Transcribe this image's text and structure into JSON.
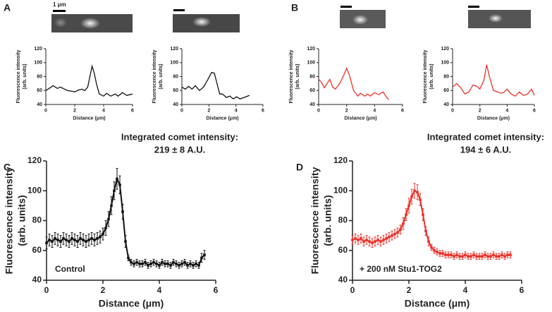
{
  "panels": [
    {
      "label": "A"
    },
    {
      "label": "B"
    },
    {
      "label": "C"
    },
    {
      "label": "D"
    }
  ],
  "scale_bar_label": "1 μm",
  "chart_data": [
    {
      "type": "line",
      "color": "#111111",
      "xlabel": "Distance (μm)",
      "ylabel": [
        "Fluorescence intensity",
        "(arb. units)"
      ],
      "xlim": [
        0,
        6
      ],
      "ylim": [
        40,
        120
      ],
      "xticks": [
        0,
        2,
        4,
        6
      ],
      "yticks": [
        40,
        60,
        80,
        100,
        120
      ],
      "x": [
        0,
        0.3,
        0.5,
        0.8,
        1,
        1.3,
        1.5,
        1.8,
        2,
        2.3,
        2.5,
        2.7,
        2.9,
        3.05,
        3.2,
        3.35,
        3.5,
        3.7,
        4,
        4.2,
        4.5,
        4.8,
        5,
        5.3,
        5.6,
        6
      ],
      "values": [
        60,
        64,
        67,
        63,
        65,
        62,
        60,
        59,
        58,
        61,
        62,
        60,
        65,
        80,
        95,
        85,
        70,
        55,
        52,
        56,
        52,
        55,
        52,
        57,
        53,
        55
      ]
    },
    {
      "type": "line",
      "color": "#111111",
      "xlabel": "Distance (μm)",
      "ylabel": [
        "Fluorescence intensity",
        "(arb. units)"
      ],
      "xlim": [
        0,
        6
      ],
      "ylim": [
        40,
        120
      ],
      "xticks": [
        0,
        2,
        4,
        6
      ],
      "yticks": [
        40,
        60,
        80,
        100,
        120
      ],
      "x": [
        0,
        0.25,
        0.5,
        0.75,
        1,
        1.3,
        1.6,
        1.9,
        2.2,
        2.4,
        2.6,
        2.8,
        3,
        3.3,
        3.55,
        3.8,
        4.05,
        4.3,
        4.6,
        5
      ],
      "values": [
        65,
        62,
        66,
        62,
        67,
        60,
        65,
        75,
        86,
        85,
        70,
        55,
        55,
        50,
        52,
        48,
        51,
        48,
        50,
        53
      ]
    },
    {
      "type": "line",
      "color": "#e8322a",
      "xlabel": "Distance (μm)",
      "ylabel": [
        "Fluorescence intensity",
        "(arb. units)"
      ],
      "xlim": [
        0,
        6
      ],
      "ylim": [
        40,
        120
      ],
      "xticks": [
        0,
        2,
        4,
        6
      ],
      "yticks": [
        40,
        60,
        80,
        100,
        120
      ],
      "x": [
        0,
        0.2,
        0.4,
        0.6,
        0.8,
        1,
        1.2,
        1.5,
        1.8,
        2,
        2.2,
        2.5,
        2.8,
        3,
        3.3,
        3.5,
        3.7,
        4,
        4.3,
        4.6,
        4.8,
        5
      ],
      "values": [
        76,
        72,
        64,
        70,
        76,
        65,
        62,
        70,
        82,
        92,
        82,
        60,
        52,
        56,
        52,
        55,
        52,
        57,
        54,
        58,
        52,
        47
      ]
    },
    {
      "type": "line",
      "color": "#e8322a",
      "xlabel": "Distance (μm)",
      "ylabel": [
        "Fluorescence intensity",
        "(arb. units)"
      ],
      "xlim": [
        0,
        6
      ],
      "ylim": [
        40,
        120
      ],
      "xticks": [
        0,
        2,
        4,
        6
      ],
      "yticks": [
        40,
        60,
        80,
        100,
        120
      ],
      "x": [
        0,
        0.3,
        0.6,
        0.9,
        1.2,
        1.5,
        1.8,
        2,
        2.3,
        2.5,
        2.7,
        3,
        3.3,
        3.6,
        3.8,
        4,
        4.3,
        4.6,
        4.9,
        5.2,
        5.5,
        5.8,
        6
      ],
      "values": [
        65,
        70,
        64,
        55,
        58,
        68,
        66,
        62,
        75,
        97,
        80,
        60,
        58,
        56,
        58,
        62,
        55,
        52,
        58,
        53,
        55,
        62,
        53
      ]
    },
    {
      "type": "errorline",
      "color": "#111111",
      "xlabel": "Distance (μm)",
      "ylabel": [
        "Fluorescence intensity",
        "(arb. units)"
      ],
      "xlim": [
        0,
        6
      ],
      "ylim": [
        40,
        120
      ],
      "xticks": [
        0,
        2,
        4,
        6
      ],
      "yticks": [
        40,
        60,
        80,
        100,
        120
      ],
      "annotation": [
        "Integrated comet intensity:",
        "219 ± 8 A.U."
      ],
      "condition": "Control",
      "x": [
        0,
        0.1,
        0.2,
        0.3,
        0.4,
        0.5,
        0.6,
        0.7,
        0.8,
        0.9,
        1,
        1.1,
        1.2,
        1.3,
        1.4,
        1.5,
        1.6,
        1.7,
        1.8,
        1.9,
        2,
        2.1,
        2.2,
        2.3,
        2.4,
        2.5,
        2.6,
        2.7,
        2.8,
        2.9,
        3,
        3.1,
        3.2,
        3.3,
        3.4,
        3.5,
        3.6,
        3.7,
        3.8,
        3.9,
        4,
        4.1,
        4.2,
        4.3,
        4.4,
        4.5,
        4.6,
        4.7,
        4.8,
        4.9,
        5,
        5.1,
        5.2,
        5.3,
        5.4,
        5.5,
        5.6
      ],
      "values": [
        65,
        67,
        66,
        68,
        67,
        66,
        68,
        67,
        66,
        68,
        67,
        66,
        68,
        67,
        66,
        67,
        68,
        67,
        68,
        69,
        71,
        75,
        81,
        90,
        100,
        108,
        104,
        86,
        66,
        55,
        52,
        51,
        52,
        51,
        51,
        52,
        50,
        51,
        52,
        51,
        50,
        52,
        51,
        51,
        50,
        52,
        51,
        50,
        51,
        52,
        50,
        51,
        50,
        51,
        50,
        55,
        57
      ],
      "errors": [
        4,
        4,
        4,
        4,
        4,
        4,
        4,
        4,
        4,
        4,
        4,
        4,
        4,
        4,
        4,
        4,
        4,
        4,
        4,
        4,
        4,
        5,
        5,
        6,
        6,
        7,
        6,
        5,
        4,
        2,
        2,
        2,
        2,
        2,
        2,
        2,
        2,
        2,
        2,
        2,
        2,
        2,
        2,
        2,
        2,
        2,
        2,
        2,
        2,
        2,
        2,
        2,
        2,
        2,
        2,
        3,
        3
      ]
    },
    {
      "type": "errorline",
      "color": "#e8322a",
      "xlabel": "Distance (μm)",
      "ylabel": [
        "Fluorescence intensity",
        "(arb. units)"
      ],
      "xlim": [
        0,
        6
      ],
      "ylim": [
        40,
        120
      ],
      "xticks": [
        0,
        2,
        4,
        6
      ],
      "yticks": [
        40,
        60,
        80,
        100,
        120
      ],
      "annotation": [
        "Integrated comet intensity:",
        "194 ± 6 A.U."
      ],
      "condition": "+ 200 nM Stu1-TOG2",
      "x": [
        0,
        0.1,
        0.2,
        0.3,
        0.4,
        0.5,
        0.6,
        0.7,
        0.8,
        0.9,
        1,
        1.1,
        1.2,
        1.3,
        1.4,
        1.5,
        1.6,
        1.7,
        1.8,
        1.9,
        2,
        2.1,
        2.2,
        2.3,
        2.4,
        2.5,
        2.6,
        2.7,
        2.8,
        2.9,
        3,
        3.1,
        3.2,
        3.3,
        3.4,
        3.5,
        3.6,
        3.7,
        3.8,
        3.9,
        4,
        4.1,
        4.2,
        4.3,
        4.4,
        4.5,
        4.6,
        4.7,
        4.8,
        4.9,
        5,
        5.1,
        5.2,
        5.3,
        5.4,
        5.5,
        5.6
      ],
      "values": [
        67,
        68,
        67,
        68,
        66,
        67,
        66,
        65,
        66,
        67,
        66,
        67,
        68,
        69,
        70,
        71,
        72,
        74,
        78,
        84,
        90,
        96,
        100,
        99,
        94,
        84,
        73,
        66,
        62,
        60,
        59,
        58,
        58,
        57,
        57,
        57,
        56,
        57,
        56,
        56,
        57,
        56,
        56,
        57,
        56,
        56,
        56,
        57,
        56,
        56,
        57,
        56,
        56,
        57,
        56,
        57,
        57
      ],
      "errors": [
        3,
        3,
        3,
        3,
        3,
        3,
        3,
        3,
        3,
        3,
        3,
        3,
        3,
        3,
        3,
        3,
        3,
        3,
        4,
        4,
        5,
        5,
        5,
        5,
        4,
        4,
        3,
        3,
        2,
        2,
        2,
        2,
        2,
        2,
        2,
        2,
        2,
        2,
        2,
        2,
        2,
        2,
        2,
        2,
        2,
        2,
        2,
        2,
        2,
        2,
        2,
        2,
        2,
        2,
        2,
        2,
        2
      ]
    }
  ]
}
